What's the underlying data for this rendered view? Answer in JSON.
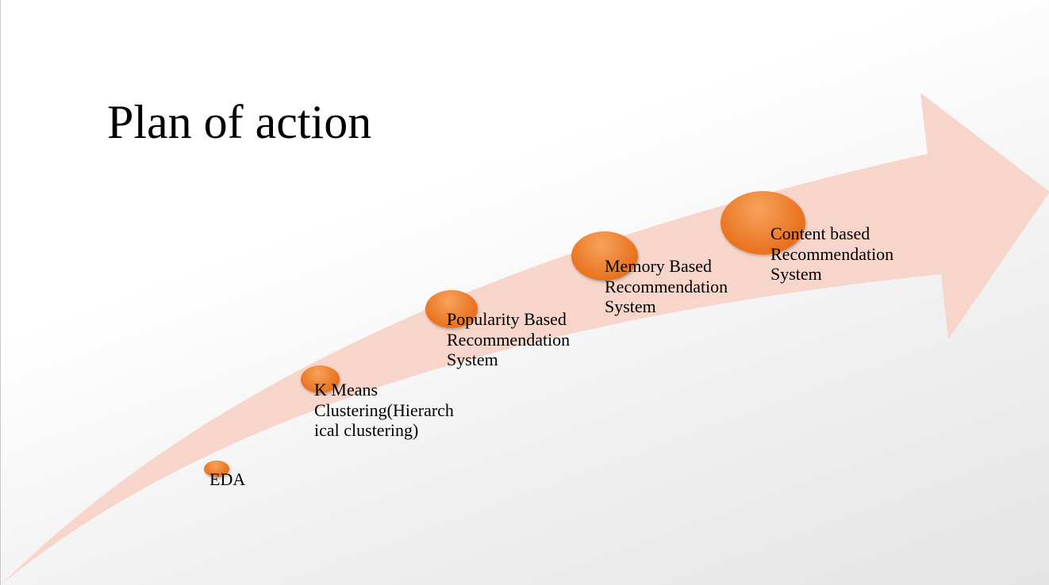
{
  "title": "Plan of action",
  "colors": {
    "arrow": "#f8d5ca",
    "bubble_light": "#f7a35c",
    "bubble_dark": "#e8711e"
  },
  "steps": [
    {
      "label": "EDA"
    },
    {
      "label": "K Means\nClustering(Hierarch\nical clustering)"
    },
    {
      "label": "Popularity Based\nRecommendation\nSystem"
    },
    {
      "label": "Memory Based\nRecommendation\nSystem"
    },
    {
      "label": "Content based\nRecommendation\nSystem"
    }
  ]
}
